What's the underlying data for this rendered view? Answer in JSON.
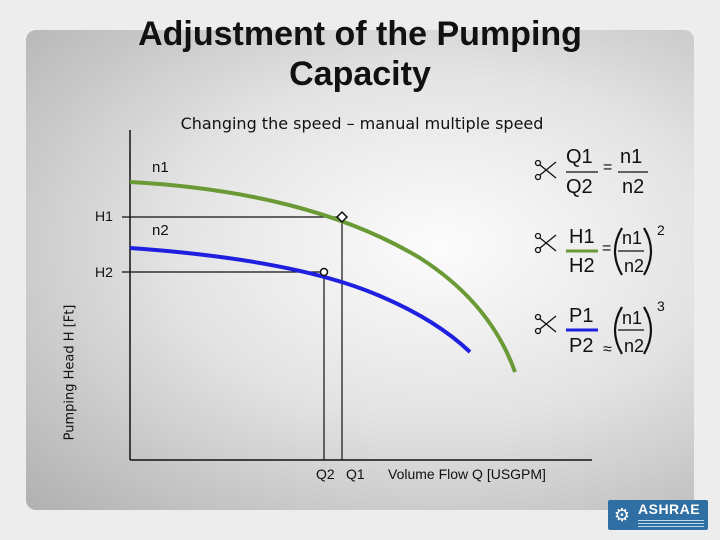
{
  "slide": {
    "title": "Adjustment of the Pumping Capacity",
    "subtitle": "Changing the speed – manual multiple speed"
  },
  "diagram": {
    "curve_labels": {
      "n1": "n1",
      "n2": "n2"
    },
    "y_ticks": {
      "h1": "H1",
      "h2": "H2"
    },
    "x_ticks": {
      "q1": "Q1",
      "q2": "Q2"
    },
    "y_axis_label": "Pumping Head H [Ft]",
    "x_axis_label": "Volume Flow Q [USGPM]",
    "curve_colors": {
      "n1": "#6a9a35",
      "n2": "#1f1fe0"
    }
  },
  "laws": {
    "flow": {
      "lhs_num": "Q1",
      "lhs_den": "Q2",
      "op": "=",
      "rhs_num": "n1",
      "rhs_den": "n2"
    },
    "head": {
      "lhs_num": "H1",
      "lhs_den": "H2",
      "op": "=",
      "rhs_num": "n1",
      "rhs_den": "n2",
      "exponent": "2",
      "bar_color": "#6a9a35"
    },
    "power": {
      "lhs_num": "P1",
      "lhs_den": "P2",
      "op": "≈",
      "rhs_num": "n1",
      "rhs_den": "n2",
      "exponent": "3",
      "bar_color": "#1f1fe0"
    }
  },
  "logo": {
    "name": "ASHRAE"
  }
}
